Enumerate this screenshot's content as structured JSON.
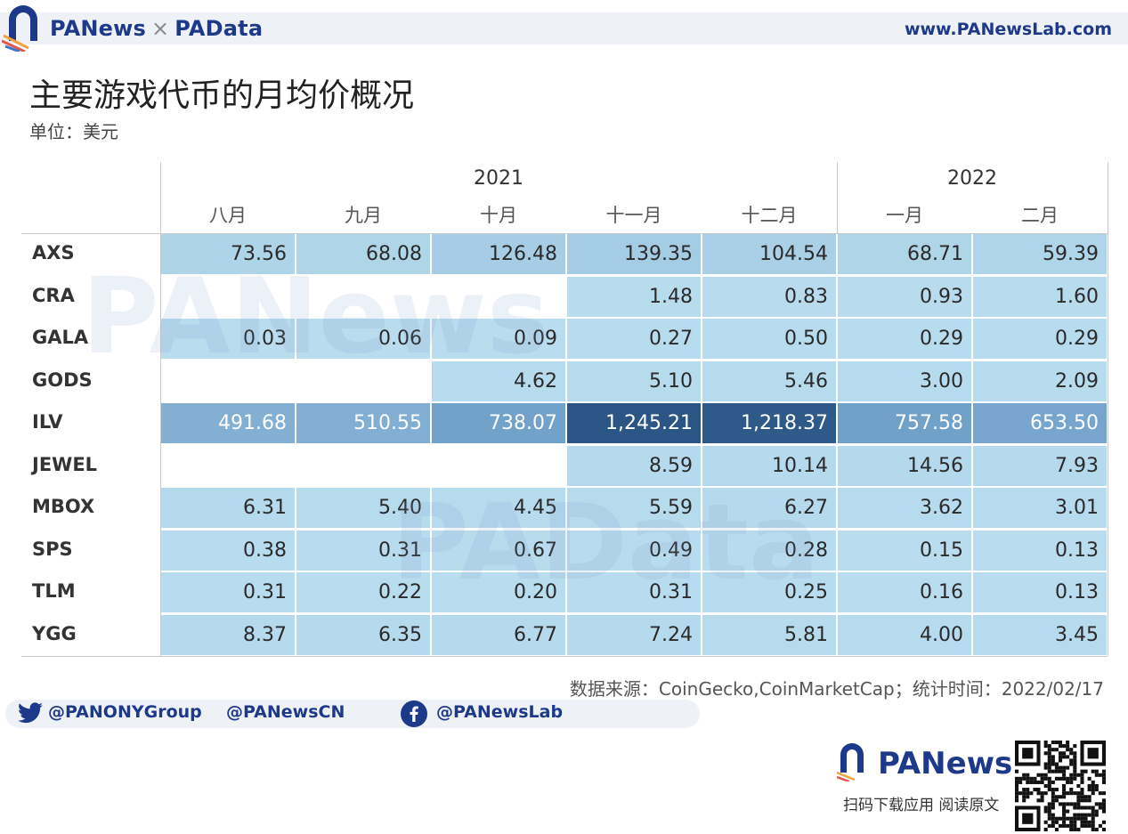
{
  "header": {
    "brand_left": "PANews",
    "brand_sep": "×",
    "brand_right": "PAData",
    "site": "www.PANewsLab.com"
  },
  "title": "主要游戏代币的月均价概况",
  "subtitle": "单位：美元",
  "chart_data": {
    "type": "table",
    "years": [
      {
        "label": "2021",
        "span": [
          "八月",
          "九月",
          "十月",
          "十一月",
          "十二月"
        ]
      },
      {
        "label": "2022",
        "span": [
          "一月",
          "二月"
        ]
      }
    ],
    "columns": [
      "八月",
      "九月",
      "十月",
      "十一月",
      "十二月",
      "一月",
      "二月"
    ],
    "rows": [
      {
        "name": "AXS",
        "values": [
          "73.56",
          "68.08",
          "126.48",
          "139.35",
          "104.54",
          "68.71",
          "59.39"
        ]
      },
      {
        "name": "CRA",
        "values": [
          "",
          "",
          "",
          "1.48",
          "0.83",
          "0.93",
          "1.60"
        ]
      },
      {
        "name": "GALA",
        "values": [
          "0.03",
          "0.06",
          "0.09",
          "0.27",
          "0.50",
          "0.29",
          "0.29"
        ]
      },
      {
        "name": "GODS",
        "values": [
          "",
          "",
          "4.62",
          "5.10",
          "5.46",
          "3.00",
          "2.09"
        ]
      },
      {
        "name": "ILV",
        "values": [
          "491.68",
          "510.55",
          "738.07",
          "1,245.21",
          "1,218.37",
          "757.58",
          "653.50"
        ]
      },
      {
        "name": "JEWEL",
        "values": [
          "",
          "",
          "",
          "8.59",
          "10.14",
          "14.56",
          "7.93"
        ]
      },
      {
        "name": "MBOX",
        "values": [
          "6.31",
          "5.40",
          "4.45",
          "5.59",
          "6.27",
          "3.62",
          "3.01"
        ]
      },
      {
        "name": "SPS",
        "values": [
          "0.38",
          "0.31",
          "0.67",
          "0.49",
          "0.28",
          "0.15",
          "0.13"
        ]
      },
      {
        "name": "TLM",
        "values": [
          "0.31",
          "0.22",
          "0.20",
          "0.31",
          "0.25",
          "0.16",
          "0.13"
        ]
      },
      {
        "name": "YGG",
        "values": [
          "8.37",
          "6.35",
          "6.77",
          "7.24",
          "5.81",
          "4.00",
          "3.45"
        ]
      }
    ],
    "colors": {
      "low": "#b9ddef",
      "mid": "#6f9ec8",
      "high": "#2a5584"
    }
  },
  "watermarks": [
    "PANews",
    "PAData"
  ],
  "source": "数据来源：CoinGecko,CoinMarketCap；统计时间：2022/02/17",
  "social": {
    "twitter1": "@PANONYGroup",
    "twitter2": "@PANewsCN",
    "facebook": "@PANewsLab",
    "icons": [
      "twitter-icon",
      "facebook-icon"
    ]
  },
  "footer": {
    "brand": "PANews",
    "cta": "扫码下载应用  阅读原文"
  }
}
